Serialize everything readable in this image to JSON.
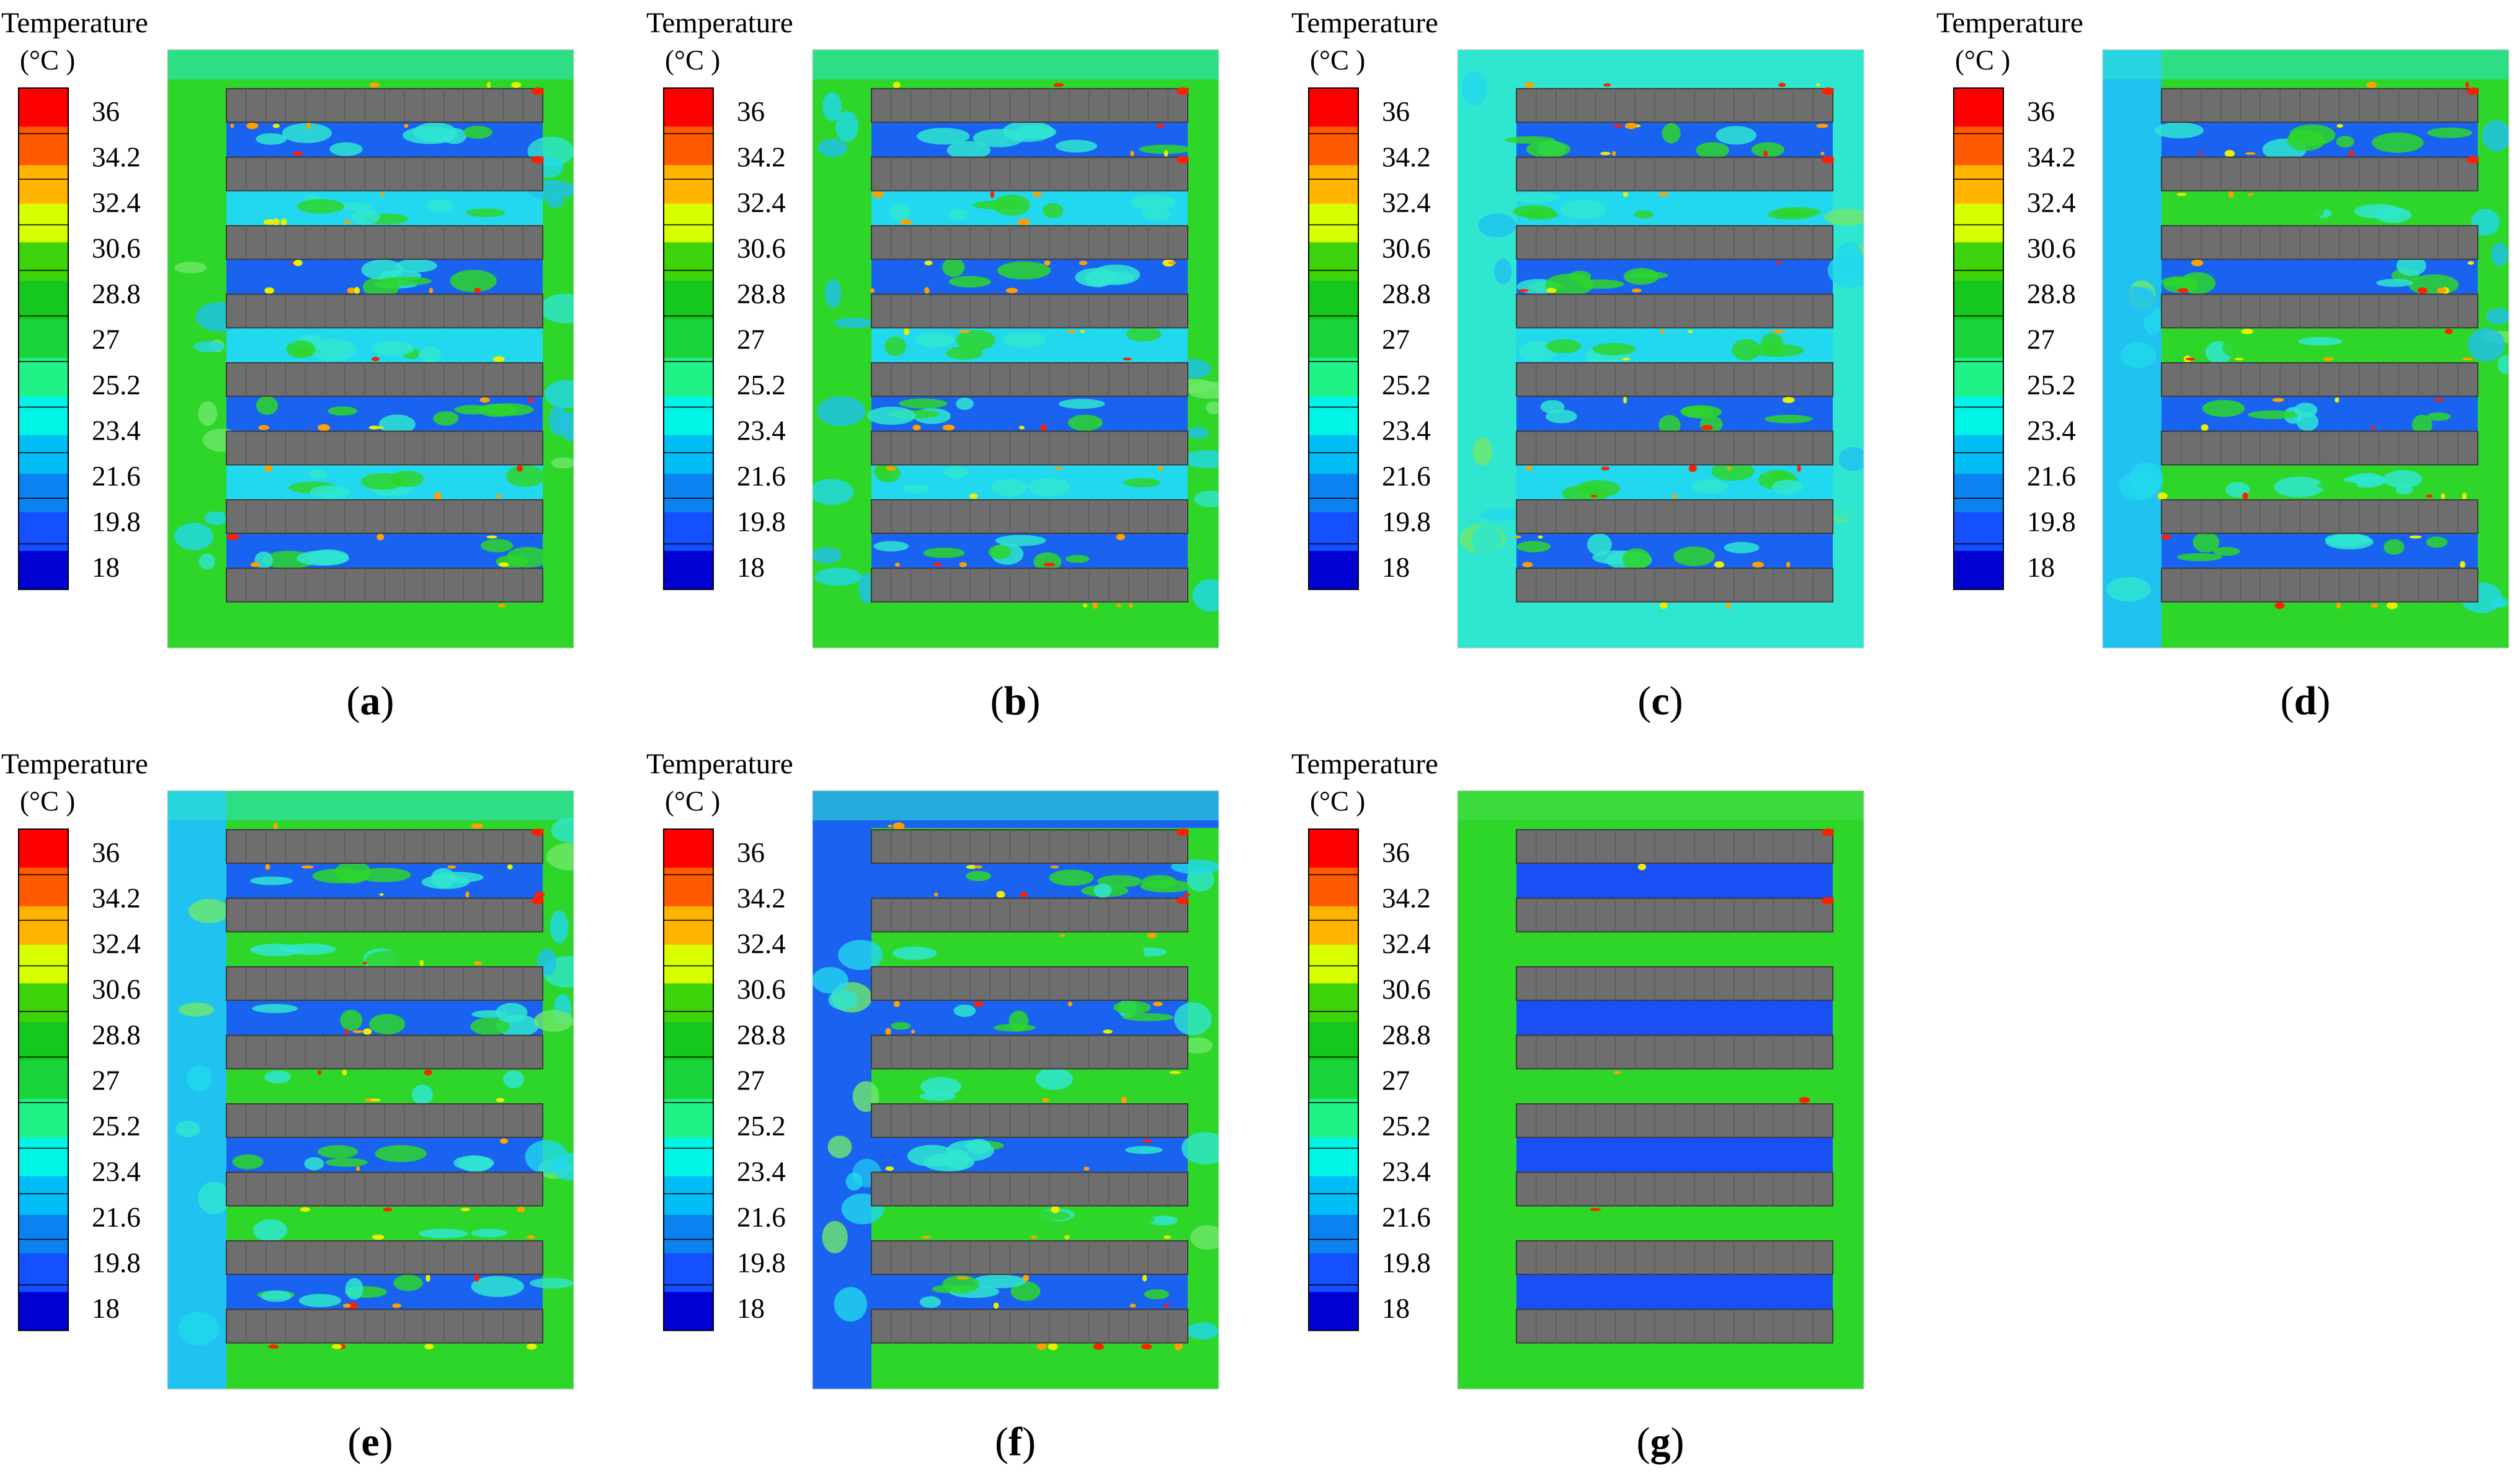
{
  "figure": {
    "legend": {
      "title": "Temperature",
      "unit": "(°C )",
      "ticks": [
        "36",
        "34.2",
        "32.4",
        "30.6",
        "28.8",
        "27",
        "25.2",
        "23.4",
        "21.6",
        "19.8",
        "18"
      ],
      "colors": [
        "#ff0000",
        "#ff5a00",
        "#ffb400",
        "#d8ff00",
        "#3cd30b",
        "#14c81e",
        "#1ad43c",
        "#21f287",
        "#00f5e6",
        "#00bef5",
        "#0a82f0",
        "#1450ff",
        "#0000d2"
      ]
    },
    "panels": [
      {
        "caption_open": "(",
        "letter": "a",
        "caption_close": ")",
        "variant": "mixed",
        "left_strip": "none"
      },
      {
        "caption_open": "(",
        "letter": "b",
        "caption_close": ")",
        "variant": "mixed",
        "left_strip": "none"
      },
      {
        "caption_open": "(",
        "letter": "c",
        "caption_close": ")",
        "variant": "mixed",
        "left_strip": "none"
      },
      {
        "caption_open": "(",
        "letter": "d",
        "caption_close": ")",
        "variant": "alternating",
        "left_strip": "light"
      },
      {
        "caption_open": "(",
        "letter": "e",
        "caption_close": ")",
        "variant": "alternating",
        "left_strip": "light"
      },
      {
        "caption_open": "(",
        "letter": "f",
        "caption_close": ")",
        "variant": "alternating",
        "left_strip": "dark"
      },
      {
        "caption_open": "(",
        "letter": "g",
        "caption_close": ")",
        "variant": "banded",
        "left_strip": "none"
      }
    ]
  }
}
